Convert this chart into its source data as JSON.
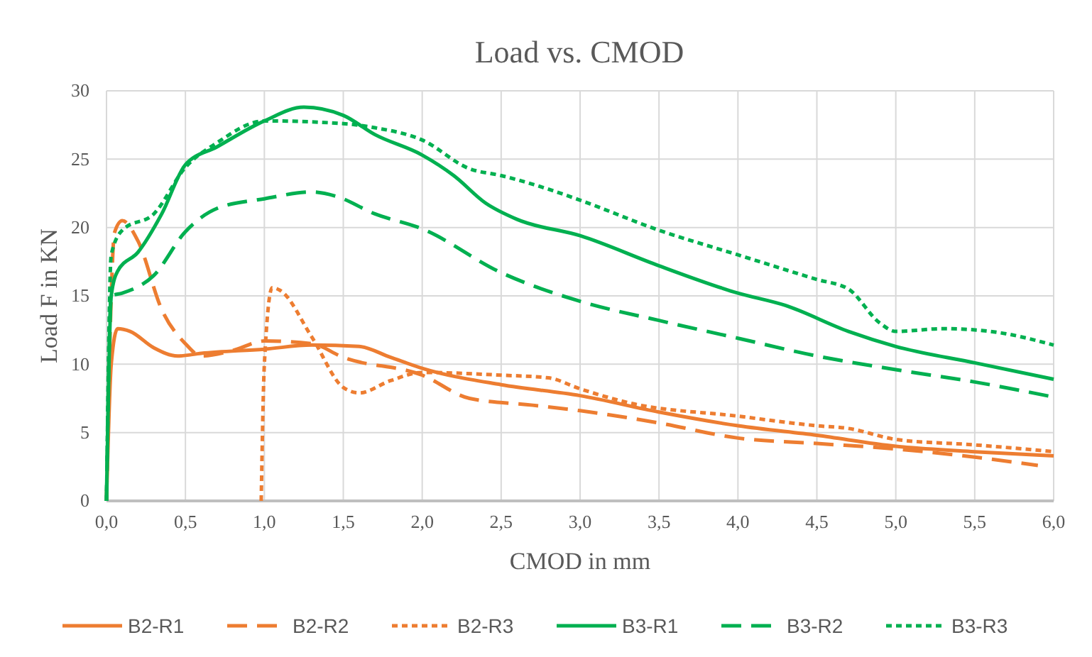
{
  "chart_data": {
    "type": "line",
    "title": "Load vs. CMOD",
    "xlabel": "CMOD in mm",
    "ylabel": "Load F in KN",
    "xlim": [
      0,
      6
    ],
    "xticks": [
      {
        "value": 0,
        "label": "0,0"
      },
      {
        "value": 0.5,
        "label": "0,5"
      },
      {
        "value": 1,
        "label": "1,0"
      },
      {
        "value": 1.5,
        "label": "1,5"
      },
      {
        "value": 2,
        "label": "2,0"
      },
      {
        "value": 2.5,
        "label": "2,5"
      },
      {
        "value": 3,
        "label": "3,0"
      },
      {
        "value": 3.5,
        "label": "3,5"
      },
      {
        "value": 4,
        "label": "4,0"
      },
      {
        "value": 4.5,
        "label": "4,5"
      },
      {
        "value": 5,
        "label": "5,0"
      },
      {
        "value": 5.5,
        "label": "5,5"
      },
      {
        "value": 6,
        "label": "6,0"
      }
    ],
    "ylim": [
      0,
      30
    ],
    "yticks": [
      0,
      5,
      10,
      15,
      20,
      25,
      30
    ],
    "grid": true,
    "legend": "bottom",
    "marker": "none",
    "series": [
      {
        "name": "B2-R1",
        "color": "#ed7d31",
        "line_style": "solid",
        "x": [
          0,
          0.03,
          0.07,
          0.15,
          0.3,
          0.45,
          0.6,
          1.0,
          1.3,
          1.6,
          1.8,
          2.0,
          2.5,
          3.0,
          3.5,
          4.0,
          4.5,
          5.0,
          5.5,
          6.0
        ],
        "values": [
          0,
          10,
          12.6,
          12.4,
          11.2,
          10.6,
          10.8,
          11.1,
          11.4,
          11.3,
          10.5,
          9.7,
          8.5,
          7.7,
          6.5,
          5.5,
          4.8,
          4.0,
          3.6,
          3.3
        ]
      },
      {
        "name": "B2-R2",
        "color": "#ed7d31",
        "line_style": "dashed",
        "x": [
          0,
          0.03,
          0.05,
          0.1,
          0.2,
          0.35,
          0.5,
          0.6,
          0.8,
          1.0,
          1.3,
          1.5,
          2.0,
          2.3,
          2.7,
          3.0,
          3.5,
          4.0,
          4.5,
          5.0,
          5.5,
          5.9
        ],
        "values": [
          0,
          15,
          19.6,
          20.5,
          19,
          14,
          11.5,
          10.6,
          11,
          11.7,
          11.5,
          10.5,
          9.2,
          7.5,
          7.0,
          6.6,
          5.7,
          4.6,
          4.2,
          3.8,
          3.2,
          2.6
        ]
      },
      {
        "name": "B2-R3",
        "color": "#ed7d31",
        "line_style": "dotted",
        "x": [
          0.98,
          1.0,
          1.05,
          1.1,
          1.3,
          1.5,
          1.6,
          1.8,
          2.0,
          2.5,
          2.8,
          3.0,
          3.3,
          4.0,
          4.5,
          4.7,
          5.0,
          5.5,
          6.0
        ],
        "values": [
          0,
          10,
          15.6,
          15.4,
          12,
          8.3,
          7.9,
          8.8,
          9.4,
          9.2,
          9.0,
          8.2,
          7.2,
          6.2,
          5.5,
          5.3,
          4.5,
          4.1,
          3.6
        ]
      },
      {
        "name": "B3-R1",
        "color": "#00b050",
        "line_style": "solid",
        "x": [
          0,
          0.03,
          0.07,
          0.2,
          0.35,
          0.5,
          0.7,
          1.0,
          1.25,
          1.5,
          1.7,
          2.0,
          2.2,
          2.4,
          2.6,
          3.0,
          3.5,
          4.0,
          4.3,
          4.7,
          5.0,
          5.5,
          6.0
        ],
        "values": [
          0,
          15,
          16.8,
          18.2,
          21,
          24.6,
          25.9,
          27.8,
          28.8,
          28.2,
          26.8,
          25.3,
          23.8,
          21.8,
          20.6,
          19.4,
          17.2,
          15.2,
          14.3,
          12.4,
          11.3,
          10.1,
          8.9
        ]
      },
      {
        "name": "B3-R2",
        "color": "#00b050",
        "line_style": "dashed",
        "x": [
          0,
          0.03,
          0.1,
          0.3,
          0.5,
          0.7,
          1.0,
          1.3,
          1.45,
          1.7,
          2.0,
          2.5,
          3.0,
          3.5,
          4.0,
          4.5,
          5.0,
          5.5,
          6.0
        ],
        "values": [
          0,
          15,
          15.2,
          16.5,
          19.7,
          21.4,
          22.1,
          22.6,
          22.3,
          21,
          19.9,
          16.7,
          14.6,
          13.2,
          11.9,
          10.6,
          9.6,
          8.7,
          7.6
        ]
      },
      {
        "name": "B3-R3",
        "color": "#00b050",
        "line_style": "dotted",
        "x": [
          0,
          0.03,
          0.1,
          0.3,
          0.5,
          0.7,
          1.0,
          1.5,
          1.7,
          2.0,
          2.3,
          2.5,
          2.8,
          3.0,
          3.5,
          4.0,
          4.5,
          4.7,
          4.9,
          5.0,
          5.3,
          5.6,
          6.0
        ],
        "values": [
          0,
          18,
          19.8,
          21,
          24.4,
          26.2,
          27.8,
          27.6,
          27.3,
          26.4,
          24.3,
          23.8,
          22.8,
          22,
          19.8,
          18,
          16.2,
          15.5,
          13,
          12.4,
          12.6,
          12.4,
          11.4
        ]
      }
    ]
  }
}
